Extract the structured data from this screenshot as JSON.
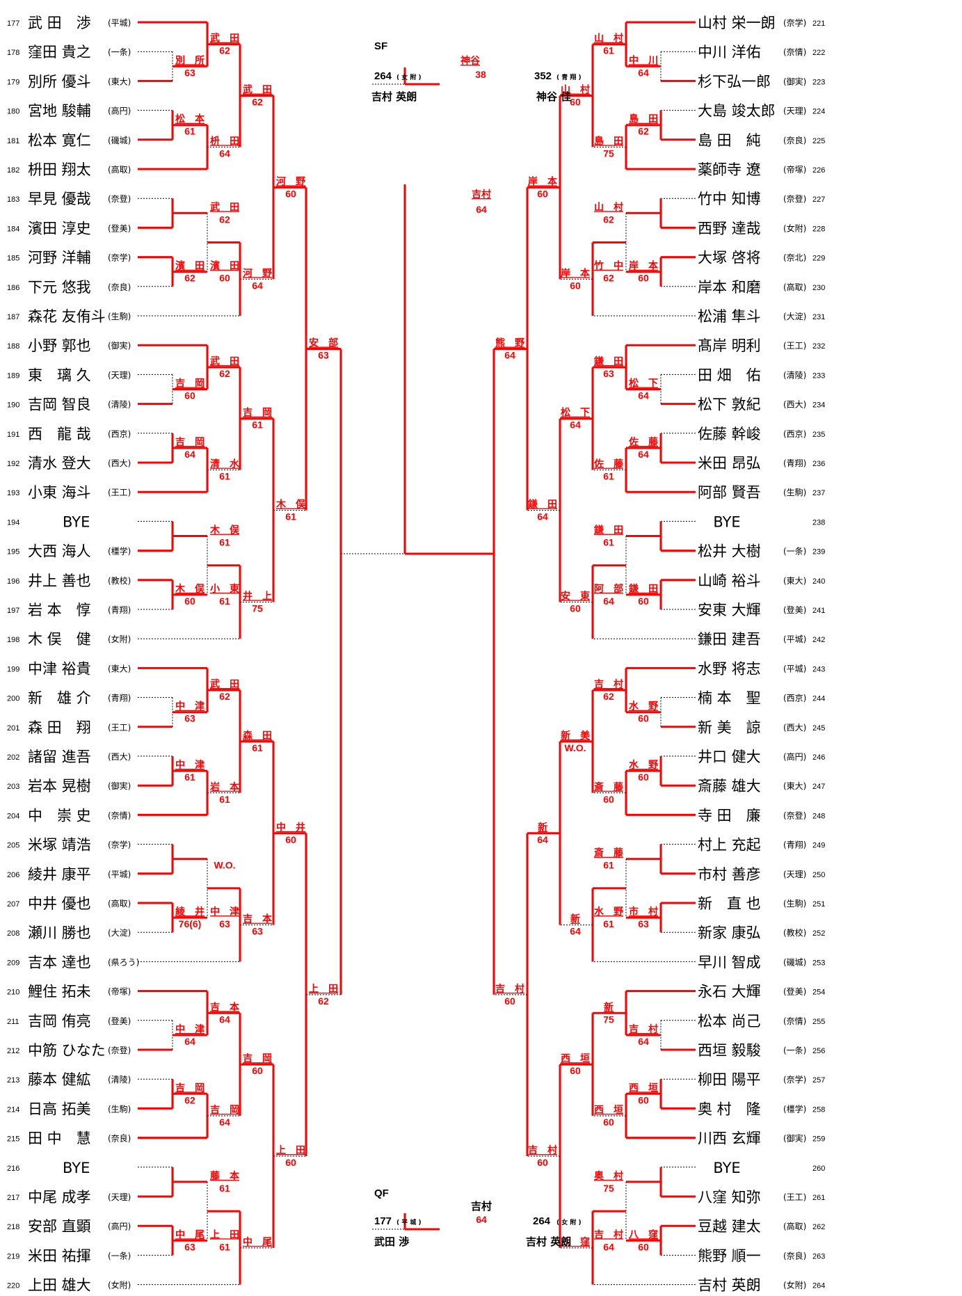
{
  "players_left": [
    {
      "no": "177",
      "name": "武 田　渉",
      "school": "(平城)"
    },
    {
      "no": "178",
      "name": "窪田 貴之",
      "school": "(一条)"
    },
    {
      "no": "179",
      "name": "別所 優斗",
      "school": "(東大)"
    },
    {
      "no": "180",
      "name": "宮地 駿輔",
      "school": "(高円)"
    },
    {
      "no": "181",
      "name": "松本 寛仁",
      "school": "(磯城)"
    },
    {
      "no": "182",
      "name": "枡田 翔太",
      "school": "(高取)"
    },
    {
      "no": "183",
      "name": "早見 優哉",
      "school": "(奈登)"
    },
    {
      "no": "184",
      "name": "濱田 淳史",
      "school": "(登美)"
    },
    {
      "no": "185",
      "name": "河野 洋輔",
      "school": "(奈学)"
    },
    {
      "no": "186",
      "name": "下元 悠我",
      "school": "(奈良)"
    },
    {
      "no": "187",
      "name": "森花 友侑斗",
      "school": "(生駒)"
    },
    {
      "no": "188",
      "name": "小野 郭也",
      "school": "(御実)"
    },
    {
      "no": "189",
      "name": "東　璃 久",
      "school": "(天理)"
    },
    {
      "no": "190",
      "name": "吉岡 智良",
      "school": "(清陵)"
    },
    {
      "no": "191",
      "name": "西　龍 哉",
      "school": "(西京)"
    },
    {
      "no": "192",
      "name": "清水 登大",
      "school": "(西大)"
    },
    {
      "no": "193",
      "name": "小東 海斗",
      "school": "(王工)"
    },
    {
      "no": "194",
      "name": "BYE",
      "school": ""
    },
    {
      "no": "195",
      "name": "大西 海人",
      "school": "(橿学)"
    },
    {
      "no": "196",
      "name": "井上 善也",
      "school": "(教校)"
    },
    {
      "no": "197",
      "name": "岩 本　惇",
      "school": "(青翔)"
    },
    {
      "no": "198",
      "name": "木 俣　健",
      "school": "(女附)"
    },
    {
      "no": "199",
      "name": "中津 裕貴",
      "school": "(東大)"
    },
    {
      "no": "200",
      "name": "新　雄 介",
      "school": "(青翔)"
    },
    {
      "no": "201",
      "name": "森 田　翔",
      "school": "(王工)"
    },
    {
      "no": "202",
      "name": "諸留 進吾",
      "school": "(西大)"
    },
    {
      "no": "203",
      "name": "岩本 晃樹",
      "school": "(御実)"
    },
    {
      "no": "204",
      "name": "中　崇 史",
      "school": "(奈情)"
    },
    {
      "no": "205",
      "name": "米塚 靖浩",
      "school": "(奈学)"
    },
    {
      "no": "206",
      "name": "綾井 康平",
      "school": "(平城)"
    },
    {
      "no": "207",
      "name": "中井 優也",
      "school": "(高取)"
    },
    {
      "no": "208",
      "name": "瀬川 勝也",
      "school": "(大淀)"
    },
    {
      "no": "209",
      "name": "吉本 達也",
      "school": "(県ろう)"
    },
    {
      "no": "210",
      "name": "鯉住 拓未",
      "school": "(帝塚)"
    },
    {
      "no": "211",
      "name": "吉岡 侑亮",
      "school": "(登美)"
    },
    {
      "no": "212",
      "name": "中筋 ひなた",
      "school": "(奈登)"
    },
    {
      "no": "213",
      "name": "藤本 健絋",
      "school": "(清陵)"
    },
    {
      "no": "214",
      "name": "日高 拓美",
      "school": "(生駒)"
    },
    {
      "no": "215",
      "name": "田 中　慧",
      "school": "(奈良)"
    },
    {
      "no": "216",
      "name": "BYE",
      "school": ""
    },
    {
      "no": "217",
      "name": "中尾 成孝",
      "school": "(天理)"
    },
    {
      "no": "218",
      "name": "安部 直顕",
      "school": "(高円)"
    },
    {
      "no": "219",
      "name": "米田 祐揮",
      "school": "(一条)"
    },
    {
      "no": "220",
      "name": "上田 雄大",
      "school": "(女附)"
    }
  ],
  "players_right": [
    {
      "no": "221",
      "name": "山村 栄一朗",
      "school": "(奈学)"
    },
    {
      "no": "222",
      "name": "中川 洋佑",
      "school": "(奈情)"
    },
    {
      "no": "223",
      "name": "杉下弘一郎",
      "school": "(御実)"
    },
    {
      "no": "224",
      "name": "大島 竣太郎",
      "school": "(天理)"
    },
    {
      "no": "225",
      "name": "島 田　純",
      "school": "(奈良)"
    },
    {
      "no": "226",
      "name": "薬師寺 遼",
      "school": "(帝塚)"
    },
    {
      "no": "227",
      "name": "竹中 知博",
      "school": "(奈登)"
    },
    {
      "no": "228",
      "name": "西野 達哉",
      "school": "(女附)"
    },
    {
      "no": "229",
      "name": "大塚 啓将",
      "school": "(奈北)"
    },
    {
      "no": "230",
      "name": "岸本 和磨",
      "school": "(高取)"
    },
    {
      "no": "231",
      "name": "松浦 隼斗",
      "school": "(大淀)"
    },
    {
      "no": "232",
      "name": "髙岸 明利",
      "school": "(王工)"
    },
    {
      "no": "233",
      "name": "田 畑　佑",
      "school": "(清陵)"
    },
    {
      "no": "234",
      "name": "松下 敦紀",
      "school": "(西大)"
    },
    {
      "no": "235",
      "name": "佐藤 幹峻",
      "school": "(西京)"
    },
    {
      "no": "236",
      "name": "米田 昂弘",
      "school": "(青翔)"
    },
    {
      "no": "237",
      "name": "阿部 賢吾",
      "school": "(生駒)"
    },
    {
      "no": "238",
      "name": "BYE",
      "school": ""
    },
    {
      "no": "239",
      "name": "松井 大樹",
      "school": "(一条)"
    },
    {
      "no": "240",
      "name": "山崎 裕斗",
      "school": "(東大)"
    },
    {
      "no": "241",
      "name": "安東 大輝",
      "school": "(登美)"
    },
    {
      "no": "242",
      "name": "鎌田 建吾",
      "school": "(平城)"
    },
    {
      "no": "243",
      "name": "水野 将志",
      "school": "(平城)"
    },
    {
      "no": "244",
      "name": "楠 本　聖",
      "school": "(西京)"
    },
    {
      "no": "245",
      "name": "新 美　諒",
      "school": "(西大)"
    },
    {
      "no": "246",
      "name": "井口 健大",
      "school": "(高円)"
    },
    {
      "no": "247",
      "name": "斎藤 雄大",
      "school": "(東大)"
    },
    {
      "no": "248",
      "name": "寺 田　廉",
      "school": "(奈登)"
    },
    {
      "no": "249",
      "name": "村上 充起",
      "school": "(青翔)"
    },
    {
      "no": "250",
      "name": "市村 善彦",
      "school": "(天理)"
    },
    {
      "no": "251",
      "name": "新　直 也",
      "school": "(生駒)"
    },
    {
      "no": "252",
      "name": "新家 康弘",
      "school": "(教校)"
    },
    {
      "no": "253",
      "name": "早川 智成",
      "school": "(磯城)"
    },
    {
      "no": "254",
      "name": "永石 大輝",
      "school": "(登美)"
    },
    {
      "no": "255",
      "name": "松本 尚己",
      "school": "(奈情)"
    },
    {
      "no": "256",
      "name": "西垣 毅駿",
      "school": "(一条)"
    },
    {
      "no": "257",
      "name": "柳田 陽平",
      "school": "(奈学)"
    },
    {
      "no": "258",
      "name": "奥 村　隆",
      "school": "(橿学)"
    },
    {
      "no": "259",
      "name": "川西 玄輝",
      "school": "(御実)"
    },
    {
      "no": "260",
      "name": "BYE",
      "school": ""
    },
    {
      "no": "261",
      "name": "八窪 知弥",
      "school": "(王工)"
    },
    {
      "no": "262",
      "name": "豆越 建太",
      "school": "(高取)"
    },
    {
      "no": "263",
      "name": "熊野 順一",
      "school": "(奈良)"
    },
    {
      "no": "264",
      "name": "吉村 英朗",
      "school": "(女附)"
    }
  ],
  "winners_left": [
    {
      "name": "武　田",
      "score": "62"
    },
    {
      "name": "別　所",
      "score": "63"
    },
    {
      "name": "武　田",
      "score": "62"
    },
    {
      "name": "松　本",
      "score": "61"
    },
    {
      "name": "枡　田",
      "score": "64"
    },
    {
      "name": "武　田",
      "score": "62"
    },
    {
      "name": "濱　田",
      "score": "60"
    },
    {
      "name": "濱　田",
      "score": "62"
    },
    {
      "name": "河　野",
      "score": "64"
    },
    {
      "name": "河　野",
      "score": "60"
    },
    {
      "name": "武　田",
      "score": "62"
    },
    {
      "name": "吉　岡",
      "score": "60"
    },
    {
      "name": "吉　岡",
      "score": "61"
    },
    {
      "name": "吉　岡",
      "score": "64"
    },
    {
      "name": "清　水",
      "score": "61"
    },
    {
      "name": "木　俣",
      "score": "61"
    },
    {
      "name": "小　東",
      "score": "61"
    },
    {
      "name": "木　俣",
      "score": "60"
    },
    {
      "name": "井　上",
      "score": "75"
    },
    {
      "name": "木　俣",
      "score": "61"
    },
    {
      "name": "武　田",
      "score": "62"
    },
    {
      "name": "中　津",
      "score": "63"
    },
    {
      "name": "森　田",
      "score": "61"
    },
    {
      "name": "中　津",
      "score": "61"
    },
    {
      "name": "岩　本",
      "score": "61"
    },
    {
      "name": "",
      "score": "W.O."
    },
    {
      "name": "中　津",
      "score": "63"
    },
    {
      "name": "綾　井",
      "score": "76(6)"
    },
    {
      "name": "吉　本",
      "score": "63"
    },
    {
      "name": "中　井",
      "score": "60"
    },
    {
      "name": "吉　本",
      "score": "64"
    },
    {
      "name": "中　津",
      "score": "64"
    },
    {
      "name": "吉　岡",
      "score": "60"
    },
    {
      "name": "吉　岡",
      "score": "62"
    },
    {
      "name": "吉　岡",
      "score": "64"
    },
    {
      "name": "藤　本",
      "score": "61"
    },
    {
      "name": "上　田",
      "score": "61"
    },
    {
      "name": "中　尾",
      "score": "63"
    },
    {
      "name": "中　尾",
      "score": ""
    },
    {
      "name": "上　田",
      "score": "60"
    },
    {
      "name": "安　部",
      "score": "63"
    },
    {
      "name": "上　田",
      "score": "62"
    }
  ],
  "winners_right": [
    {
      "name": "山　村",
      "score": "61"
    },
    {
      "name": "中　川",
      "score": "64"
    },
    {
      "name": "山　村",
      "score": "60"
    },
    {
      "name": "島　田",
      "score": "62"
    },
    {
      "name": "島　田",
      "score": "75"
    },
    {
      "name": "山　村",
      "score": "62"
    },
    {
      "name": "竹　中",
      "score": "62"
    },
    {
      "name": "岸　本",
      "score": "60"
    },
    {
      "name": "岸　本",
      "score": "60"
    },
    {
      "name": "岸　本",
      "score": "60"
    },
    {
      "name": "鎌　田",
      "score": "63"
    },
    {
      "name": "松　下",
      "score": "64"
    },
    {
      "name": "松　下",
      "score": "64"
    },
    {
      "name": "佐　藤",
      "score": "64"
    },
    {
      "name": "佐　藤",
      "score": "61"
    },
    {
      "name": "鎌　田",
      "score": "61"
    },
    {
      "name": "阿　部",
      "score": "64"
    },
    {
      "name": "鎌　田",
      "score": "60"
    },
    {
      "name": "安　東",
      "score": "60"
    },
    {
      "name": "鎌　田",
      "score": "64"
    },
    {
      "name": "吉　村",
      "score": "62"
    },
    {
      "name": "水　野",
      "score": "60"
    },
    {
      "name": "新　美",
      "score": "W.O."
    },
    {
      "name": "水　野",
      "score": "60"
    },
    {
      "name": "斎　藤",
      "score": "60"
    },
    {
      "name": "斎　藤",
      "score": "61"
    },
    {
      "name": "水　野",
      "score": "61"
    },
    {
      "name": "市　村",
      "score": "63"
    },
    {
      "name": "新",
      "score": "64"
    },
    {
      "name": "新",
      "score": "64"
    },
    {
      "name": "新",
      "score": "75"
    },
    {
      "name": "吉　村",
      "score": "64"
    },
    {
      "name": "西　垣",
      "score": "60"
    },
    {
      "name": "西　垣",
      "score": "60"
    },
    {
      "name": "西　垣",
      "score": "60"
    },
    {
      "name": "奥　村",
      "score": "75"
    },
    {
      "name": "吉　村",
      "score": "64"
    },
    {
      "name": "八　窪",
      "score": "60"
    },
    {
      "name": "八　窪",
      "score": ""
    },
    {
      "name": "吉　村",
      "score": "60"
    },
    {
      "name": "熊　野",
      "score": "64"
    },
    {
      "name": "吉　村",
      "score": "60"
    }
  ],
  "center": {
    "champion_name": "吉村",
    "champion_score": "64",
    "sf": {
      "label": "SF",
      "winner_name": "神谷",
      "winner_score": "38",
      "left_no": "264",
      "left_school": "( 女 附 )",
      "left_name": "吉村 英朗",
      "right_no": "352",
      "right_school": "( 青 翔 )",
      "right_name": "神谷 佳"
    },
    "qf": {
      "label": "QF",
      "winner_name": "吉村",
      "winner_score": "64",
      "left_no": "177",
      "left_school": "( 平 城 )",
      "left_name": "武田 渉",
      "right_no": "264",
      "right_school": "( 女 附 )",
      "right_name": "吉村 英朗"
    }
  }
}
